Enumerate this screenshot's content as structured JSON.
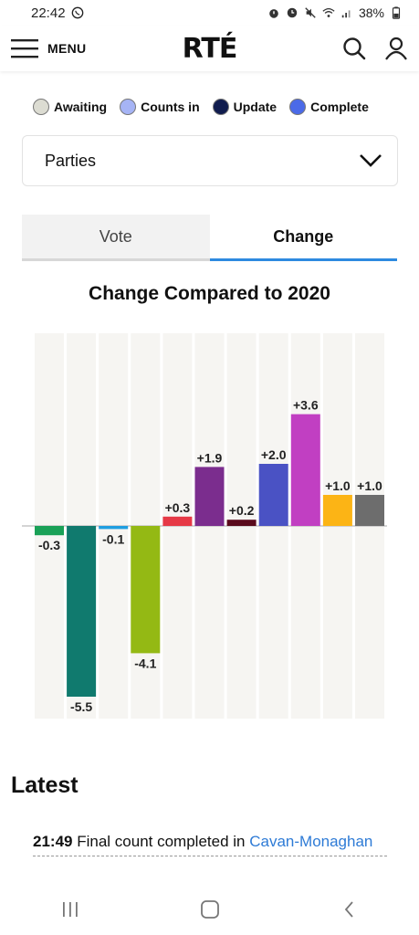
{
  "status_bar": {
    "time": "22:42",
    "battery": "38%"
  },
  "header": {
    "menu_label": "MENU",
    "logo": "RTÉ"
  },
  "legend": [
    {
      "label": "Awaiting",
      "color": "#dcdcd2"
    },
    {
      "label": "Counts in",
      "color": "#a6b4f5"
    },
    {
      "label": "Update",
      "color": "#101c4e"
    },
    {
      "label": "Complete",
      "color": "#4b6ae8"
    }
  ],
  "dropdown": {
    "selected": "Parties"
  },
  "tabs": [
    {
      "label": "Vote"
    },
    {
      "label": "Change"
    }
  ],
  "chart_data": {
    "type": "bar",
    "title": "Change Compared to 2020",
    "values": [
      -0.3,
      -5.5,
      -0.1,
      -4.1,
      0.3,
      1.9,
      0.2,
      2.0,
      3.6,
      1.0,
      1.0
    ],
    "labels": [
      "-0.3",
      "-5.5",
      "-0.1",
      "-4.1",
      "+0.3",
      "+1.9",
      "+0.2",
      "+2.0",
      "+3.6",
      "+1.0",
      "+1.0"
    ],
    "colors": [
      "#1aa157",
      "#107a6e",
      "#1f9ee0",
      "#94b914",
      "#e63946",
      "#7b2d8e",
      "#5a0a1c",
      "#4a52c4",
      "#c13fc2",
      "#fcb415",
      "#6d6d6d"
    ],
    "ylim": [
      -6.2,
      6.2
    ],
    "grid": false,
    "legend": "none"
  },
  "latest": {
    "heading": "Latest",
    "items": [
      {
        "time": "21:49",
        "text": "Final count completed in",
        "link": "Cavan-Monaghan"
      }
    ]
  }
}
